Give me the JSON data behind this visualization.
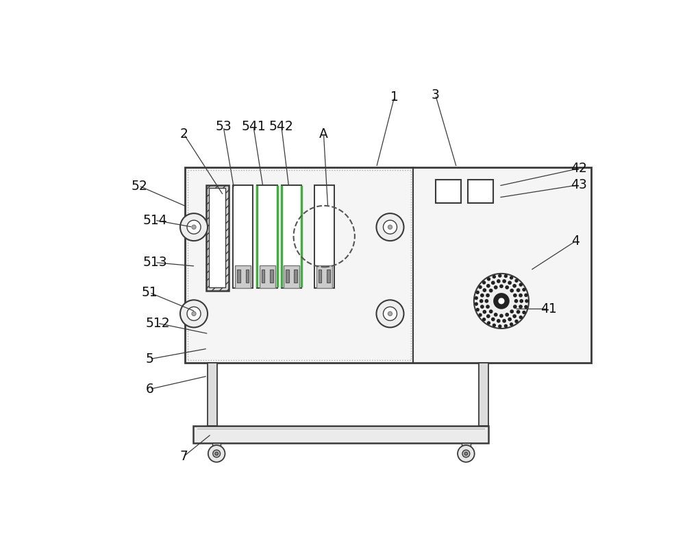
{
  "bg_color": "#ffffff",
  "lc": "#3a3a3a",
  "fc_panel": "#f5f5f5",
  "fc_cab": "#f8f8f8",
  "annotations": [
    [
      "1",
      582,
      62,
      548,
      195
    ],
    [
      "2",
      183,
      132,
      258,
      248
    ],
    [
      "3",
      660,
      58,
      700,
      195
    ],
    [
      "4",
      925,
      335,
      840,
      390
    ],
    [
      "5",
      118,
      558,
      228,
      538
    ],
    [
      "6",
      118,
      615,
      228,
      590
    ],
    [
      "7",
      183,
      742,
      235,
      700
    ],
    [
      "41",
      875,
      463,
      810,
      463
    ],
    [
      "42",
      932,
      197,
      780,
      230
    ],
    [
      "43",
      932,
      228,
      780,
      252
    ],
    [
      "51",
      118,
      432,
      205,
      468
    ],
    [
      "52",
      98,
      230,
      190,
      270
    ],
    [
      "53",
      258,
      118,
      278,
      235
    ],
    [
      "512",
      133,
      490,
      230,
      510
    ],
    [
      "513",
      128,
      375,
      205,
      382
    ],
    [
      "514",
      128,
      295,
      200,
      308
    ],
    [
      "541",
      315,
      118,
      333,
      232
    ],
    [
      "542",
      368,
      118,
      382,
      232
    ],
    [
      "A",
      448,
      132,
      456,
      270
    ]
  ]
}
